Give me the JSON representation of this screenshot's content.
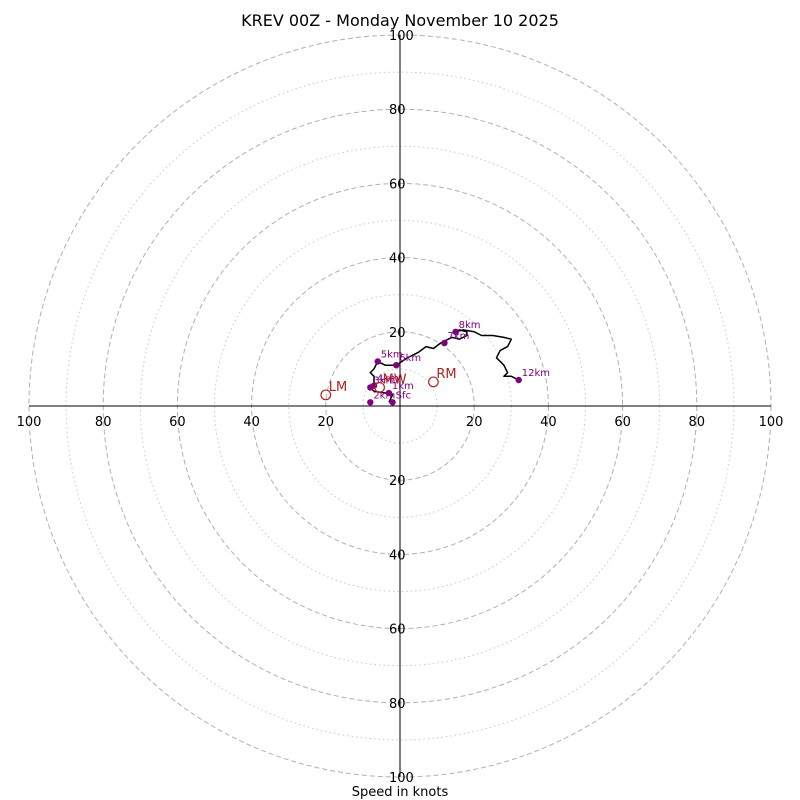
{
  "chart_data": {
    "type": "hodograph",
    "title": "KREV 00Z - Monday November 10 2025",
    "xlabel": "Speed in knots",
    "axis_range": [
      -100,
      100
    ],
    "rings": {
      "dashed": [
        20,
        40,
        60,
        80,
        100
      ],
      "dotted": [
        10,
        30,
        50,
        70,
        90
      ]
    },
    "x_tick_labels": [
      "100",
      "80",
      "60",
      "40",
      "20",
      "20",
      "40",
      "60",
      "80",
      "100"
    ],
    "y_tick_labels": [
      "100",
      "80",
      "60",
      "40",
      "20",
      "20",
      "40",
      "60",
      "80",
      "100"
    ],
    "colors": {
      "profile": "#000000",
      "height_markers": "#800080",
      "storm_motion": "#b22222",
      "rings": "#b0b0b0"
    },
    "profile": [
      [
        -3,
        1
      ],
      [
        -2,
        3
      ],
      [
        -4,
        3.5
      ],
      [
        -7,
        4
      ],
      [
        -8,
        5
      ],
      [
        -7,
        6
      ],
      [
        -7,
        8
      ],
      [
        -8,
        9
      ],
      [
        -7,
        10
      ],
      [
        -6,
        12
      ],
      [
        -4,
        11
      ],
      [
        -1,
        11
      ],
      [
        2,
        13
      ],
      [
        5,
        14.5
      ],
      [
        7,
        16
      ],
      [
        9,
        15.5
      ],
      [
        11,
        17
      ],
      [
        13,
        18
      ],
      [
        14,
        18.5
      ],
      [
        16,
        18
      ],
      [
        18,
        19
      ],
      [
        18,
        20
      ],
      [
        16,
        20.5
      ],
      [
        15,
        20
      ],
      [
        17,
        20.5
      ],
      [
        20,
        20
      ],
      [
        22,
        19
      ],
      [
        25,
        19
      ],
      [
        28,
        18.5
      ],
      [
        30,
        18
      ],
      [
        29,
        16
      ],
      [
        27,
        15
      ],
      [
        26,
        13
      ],
      [
        27,
        12
      ],
      [
        28,
        11
      ],
      [
        29,
        9
      ],
      [
        28,
        8
      ],
      [
        30,
        8
      ],
      [
        32,
        7
      ]
    ],
    "height_markers": [
      {
        "label": "Sfc",
        "u": -2,
        "v": 1
      },
      {
        "label": "1km",
        "u": -3,
        "v": 3.5
      },
      {
        "label": "2km",
        "u": -8,
        "v": 1
      },
      {
        "label": "3km",
        "u": -8,
        "v": 5
      },
      {
        "label": "4km",
        "u": -7,
        "v": 5.5
      },
      {
        "label": "5km",
        "u": -6,
        "v": 12
      },
      {
        "label": "6km",
        "u": -1,
        "v": 11
      },
      {
        "label": "7km",
        "u": 12,
        "v": 17
      },
      {
        "label": "8km",
        "u": 15,
        "v": 20
      },
      {
        "label": "12km",
        "u": 32,
        "v": 7
      }
    ],
    "storm_motion": [
      {
        "label": "LM",
        "u": -20,
        "v": 3
      },
      {
        "label": "MW",
        "u": -5.5,
        "v": 5
      },
      {
        "label": "RM",
        "u": 9,
        "v": 6.5
      }
    ]
  }
}
